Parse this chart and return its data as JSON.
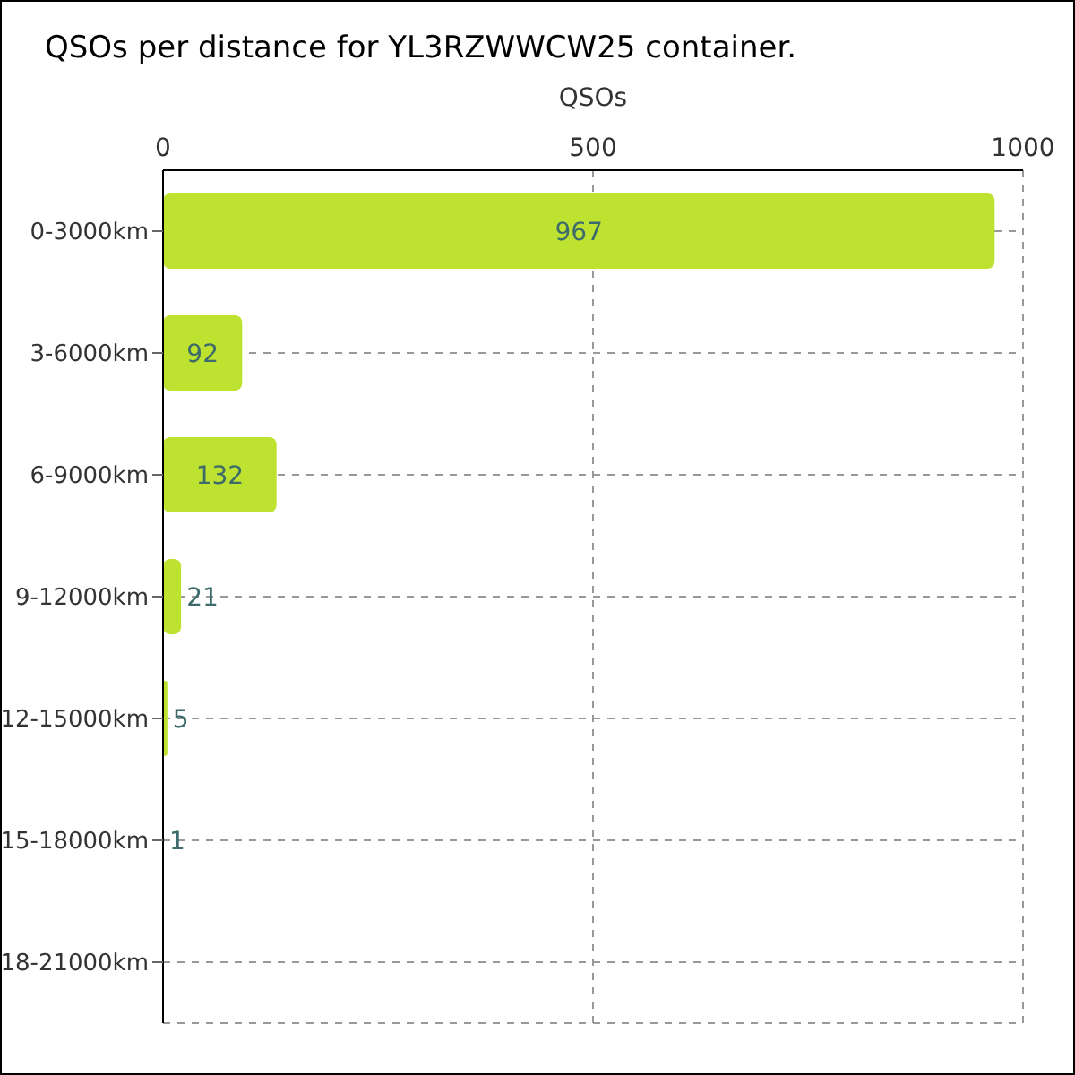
{
  "chart_data": {
    "type": "bar",
    "orientation": "horizontal",
    "title": "QSOs per distance for YL3RZWWCW25 container.",
    "xlabel": "QSOs",
    "categories": [
      "0-3000km",
      "3-6000km",
      "6-9000km",
      "9-12000km",
      "12-15000km",
      "15-18000km",
      "18-21000km"
    ],
    "values": [
      967,
      92,
      132,
      21,
      5,
      1,
      0
    ],
    "value_labels": [
      "967",
      "92",
      "132",
      "21",
      "5",
      "1",
      null
    ],
    "color": "#bde22f",
    "xlim": [
      0,
      1000
    ],
    "xticks": [
      0,
      500,
      1000
    ],
    "grid": true,
    "legend": false
  }
}
